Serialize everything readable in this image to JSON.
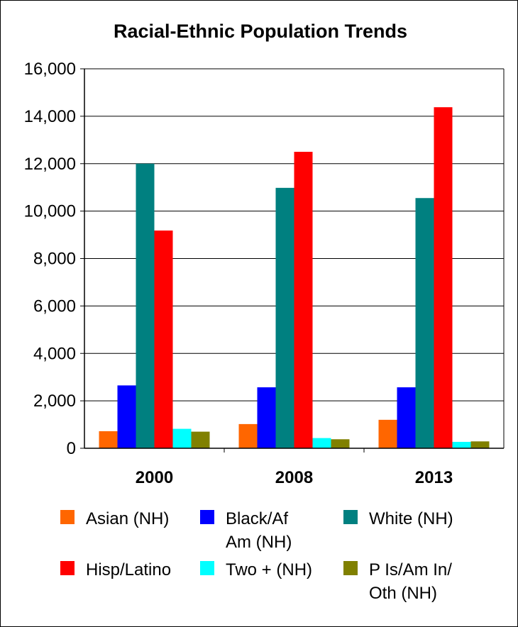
{
  "chart_data": {
    "type": "bar",
    "title": "Racial-Ethnic Population Trends",
    "categories": [
      "2000",
      "2008",
      "2013"
    ],
    "series": [
      {
        "name": "Asian (NH)",
        "color": "#ff6600",
        "values": [
          720,
          1020,
          1200
        ]
      },
      {
        "name": "Black/Af Am (NH)",
        "color": "#0000ff",
        "values": [
          2650,
          2570,
          2570
        ]
      },
      {
        "name": "White (NH)",
        "color": "#008080",
        "values": [
          12000,
          10980,
          10550
        ]
      },
      {
        "name": "Hisp/Latino",
        "color": "#ff0000",
        "values": [
          9180,
          12500,
          14380
        ]
      },
      {
        "name": "Two + (NH)",
        "color": "#00ffff",
        "values": [
          820,
          430,
          270
        ]
      },
      {
        "name": "P Is/Am In/ Oth (NH)",
        "color": "#808000",
        "values": [
          700,
          380,
          290
        ]
      }
    ],
    "y_ticks": [
      "0",
      "2,000",
      "4,000",
      "6,000",
      "8,000",
      "10,000",
      "12,000",
      "14,000",
      "16,000"
    ],
    "ylim": [
      0,
      16000
    ],
    "legend_position": "bottom",
    "legend_labels": [
      [
        "Asian (NH)"
      ],
      [
        "Black/Af",
        "Am (NH)"
      ],
      [
        "White (NH)"
      ],
      [
        "Hisp/Latino"
      ],
      [
        "Two + (NH)"
      ],
      [
        "P Is/Am In/",
        "Oth (NH)"
      ]
    ]
  }
}
